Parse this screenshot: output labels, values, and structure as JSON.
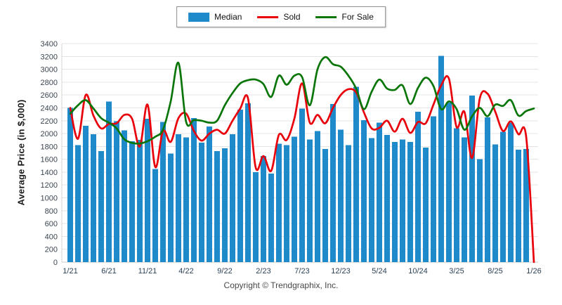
{
  "legend": {
    "items": [
      {
        "label": "Median",
        "type": "bar",
        "color": "#1f8ac9"
      },
      {
        "label": "Sold",
        "type": "line",
        "color": "#e8000b"
      },
      {
        "label": "For Sale",
        "type": "line",
        "color": "#0a760a"
      }
    ]
  },
  "y_axis": {
    "title": "Average Price (in $,000)"
  },
  "footer": {
    "text": "Copyright © Trendgraphix, Inc."
  },
  "chart_data": {
    "type": "combo-bar-line",
    "title": "",
    "xlabel": "",
    "ylabel": "Average Price (in $,000)",
    "ylim": [
      0,
      3400
    ],
    "y_step": 200,
    "grid": true,
    "legend_position": "top",
    "x": [
      "1/21",
      "2/21",
      "3/21",
      "4/21",
      "5/21",
      "6/21",
      "7/21",
      "8/21",
      "9/21",
      "10/21",
      "11/21",
      "12/21",
      "1/22",
      "2/22",
      "3/22",
      "4/22",
      "5/22",
      "6/22",
      "7/22",
      "8/22",
      "9/22",
      "10/22",
      "11/22",
      "12/22",
      "1/23",
      "2/23",
      "3/23",
      "4/23",
      "5/23",
      "6/23",
      "7/23",
      "8/23",
      "9/23",
      "10/23",
      "11/23",
      "12/23",
      "1/24",
      "2/24",
      "3/24",
      "4/24",
      "5/24",
      "6/24",
      "7/24",
      "8/24",
      "9/24",
      "10/24",
      "11/24",
      "12/24",
      "1/25",
      "2/25",
      "3/25",
      "4/25",
      "5/25",
      "6/25",
      "7/25",
      "8/25",
      "9/25",
      "10/25",
      "11/25",
      "12/25",
      "1/26"
    ],
    "x_tick_every": 5,
    "x_tick_labels": [
      "1/21",
      "6/21",
      "11/21",
      "4/22",
      "9/22",
      "2/23",
      "7/23",
      "12/23",
      "5/24",
      "10/24",
      "3/25",
      "8/25",
      "1/26"
    ],
    "series": [
      {
        "name": "Median",
        "type": "bar",
        "color": "#1f8ac9",
        "values": [
          2400,
          1820,
          2120,
          1990,
          1730,
          2500,
          2190,
          2050,
          1880,
          1900,
          2230,
          1450,
          2180,
          1690,
          1990,
          1940,
          2240,
          1860,
          2110,
          1730,
          1770,
          1990,
          2370,
          2470,
          1400,
          1650,
          1380,
          1840,
          1820,
          1950,
          2390,
          1910,
          2040,
          1760,
          2460,
          2060,
          1820,
          2730,
          2210,
          1930,
          2170,
          1980,
          1870,
          1910,
          1870,
          2340,
          1780,
          2270,
          3210,
          2480,
          2080,
          1940,
          2590,
          1600,
          2250,
          1830,
          2030,
          2170,
          1750,
          1760,
          null
        ]
      },
      {
        "name": "Sold",
        "type": "line",
        "color": "#e8000b",
        "values": [
          2400,
          1920,
          2600,
          2280,
          2080,
          2150,
          2160,
          2290,
          2230,
          1800,
          2450,
          1480,
          2040,
          1870,
          2240,
          2310,
          2040,
          1890,
          2000,
          2060,
          2000,
          2200,
          2390,
          2550,
          1470,
          1650,
          1420,
          1980,
          1900,
          2230,
          2780,
          2170,
          2290,
          2160,
          2400,
          2600,
          2690,
          2640,
          2330,
          2080,
          2090,
          2200,
          2030,
          2230,
          2010,
          2180,
          2160,
          2450,
          2750,
          2855,
          2100,
          2340,
          1620,
          2550,
          2620,
          2340,
          2040,
          2190,
          1990,
          1950,
          0
        ]
      },
      {
        "name": "For Sale",
        "type": "line",
        "color": "#0a760a",
        "values": [
          2310,
          2440,
          2520,
          2390,
          2240,
          2170,
          2080,
          1910,
          1855,
          1845,
          1880,
          1950,
          2060,
          2500,
          3100,
          2180,
          2210,
          2200,
          2170,
          2200,
          2440,
          2630,
          2780,
          2830,
          2840,
          2770,
          2570,
          2900,
          2760,
          2900,
          2880,
          2440,
          3000,
          3190,
          3080,
          3040,
          2900,
          2700,
          2380,
          2650,
          2840,
          2700,
          2680,
          2750,
          2460,
          2710,
          2870,
          2740,
          2380,
          2500,
          2380,
          2060,
          2270,
          2400,
          2270,
          2450,
          2430,
          2520,
          2280,
          2350,
          2390
        ]
      }
    ]
  }
}
